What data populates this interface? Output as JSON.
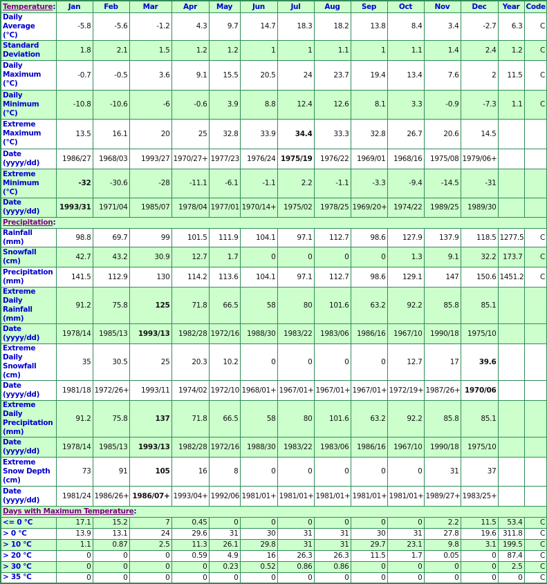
{
  "colors": {
    "border": "#2e8b57",
    "shade": "#ccffcc",
    "label": "#0000cc",
    "link": "#800080"
  },
  "columns": [
    "Jan",
    "Feb",
    "Mar",
    "Apr",
    "May",
    "Jun",
    "Jul",
    "Aug",
    "Sep",
    "Oct",
    "Nov",
    "Dec",
    "Year",
    "Code"
  ],
  "sections": [
    {
      "title": "Temperature",
      "rows": [
        {
          "label": "Daily Average\n(°C)",
          "shaded": false,
          "h": 29,
          "values": [
            "-5.8",
            "-5.6",
            "-1.2",
            "4.3",
            "9.7",
            "14.7",
            "18.3",
            "18.2",
            "13.8",
            "8.4",
            "3.4",
            "-2.7",
            "6.3",
            "C"
          ]
        },
        {
          "label": "Standard\nDeviation",
          "shaded": true,
          "h": 29,
          "values": [
            "1.8",
            "2.1",
            "1.5",
            "1.2",
            "1.2",
            "1",
            "1",
            "1.1",
            "1",
            "1.1",
            "1.4",
            "2.4",
            "1.2",
            "C"
          ]
        },
        {
          "label": "Daily\nMaximum\n(°C)",
          "shaded": false,
          "h": 43,
          "values": [
            "-0.7",
            "-0.5",
            "3.6",
            "9.1",
            "15.5",
            "20.5",
            "24",
            "23.7",
            "19.4",
            "13.4",
            "7.6",
            "2",
            "11.5",
            "C"
          ]
        },
        {
          "label": "Daily\nMinimum\n(°C)",
          "shaded": true,
          "h": 42,
          "values": [
            "-10.8",
            "-10.6",
            "-6",
            "-0.6",
            "3.9",
            "8.8",
            "12.4",
            "12.6",
            "8.1",
            "3.3",
            "-0.9",
            "-7.3",
            "1.1",
            "C"
          ]
        },
        {
          "label": "Extreme\nMaximum\n(°C)",
          "shaded": false,
          "h": 43,
          "bold_index": 6,
          "values": [
            "13.5",
            "16.1",
            "20",
            "25",
            "32.8",
            "33.9",
            "34.4",
            "33.3",
            "32.8",
            "26.7",
            "20.6",
            "14.5",
            "",
            ""
          ]
        },
        {
          "label": "Date\n(yyyy/dd)",
          "shaded": false,
          "h": 29,
          "bold_index": 6,
          "values": [
            "1986/27",
            "1968/03",
            "1993/27",
            "1970/27+",
            "1977/23",
            "1976/24",
            "1975/19",
            "1976/22",
            "1969/01",
            "1968/16",
            "1975/08",
            "1979/06+",
            "",
            ""
          ]
        },
        {
          "label": "Extreme\nMinimum\n(°C)",
          "shaded": true,
          "h": 42,
          "bold_index": 0,
          "values": [
            "-32",
            "-30.6",
            "-28",
            "-11.1",
            "-6.1",
            "-1.1",
            "2.2",
            "-1.1",
            "-3.3",
            "-9.4",
            "-14.5",
            "-31",
            "",
            ""
          ]
        },
        {
          "label": "Date\n(yyyy/dd)",
          "shaded": true,
          "h": 28,
          "bold_index": 0,
          "values": [
            "1993/31",
            "1971/04",
            "1985/07",
            "1978/04",
            "1977/01",
            "1970/14+",
            "1975/02",
            "1978/25",
            "1969/20+",
            "1974/22",
            "1989/25",
            "1989/30",
            "",
            ""
          ]
        }
      ]
    },
    {
      "title": "Precipitation",
      "rows": [
        {
          "label": "Rainfall (mm)",
          "shaded": false,
          "h": 17,
          "values": [
            "98.8",
            "69.7",
            "99",
            "101.5",
            "111.9",
            "104.1",
            "97.1",
            "112.7",
            "98.6",
            "127.9",
            "137.9",
            "118.5",
            "1277.5",
            "C"
          ]
        },
        {
          "label": "Snowfall\n(cm)",
          "shaded": true,
          "h": 29,
          "values": [
            "42.7",
            "43.2",
            "30.9",
            "12.7",
            "1.7",
            "0",
            "0",
            "0",
            "0",
            "1.3",
            "9.1",
            "32.2",
            "173.7",
            "C"
          ]
        },
        {
          "label": "Precipitation\n(mm)",
          "shaded": false,
          "h": 29,
          "values": [
            "141.5",
            "112.9",
            "130",
            "114.2",
            "113.6",
            "104.1",
            "97.1",
            "112.7",
            "98.6",
            "129.1",
            "147",
            "150.6",
            "1451.2",
            "C"
          ]
        },
        {
          "label": "Extreme Daily\nRainfall (mm)",
          "shaded": true,
          "h": 30,
          "bold_index": 2,
          "values": [
            "91.2",
            "75.8",
            "125",
            "71.8",
            "66.5",
            "58",
            "80",
            "101.6",
            "63.2",
            "92.2",
            "85.8",
            "85.1",
            "",
            ""
          ]
        },
        {
          "label": "Date\n(yyyy/dd)",
          "shaded": true,
          "h": 29,
          "bold_index": 2,
          "values": [
            "1978/14",
            "1985/13",
            "1993/13",
            "1982/28",
            "1972/16",
            "1988/30",
            "1983/22",
            "1983/06",
            "1986/16",
            "1967/10",
            "1990/18",
            "1975/10",
            "",
            ""
          ]
        },
        {
          "label": "Extreme Daily\nSnowfall\n(cm)",
          "shaded": false,
          "h": 42,
          "bold_index": 11,
          "values": [
            "35",
            "30.5",
            "25",
            "20.3",
            "10.2",
            "0",
            "0",
            "0",
            "0",
            "12.7",
            "17",
            "39.6",
            "",
            ""
          ]
        },
        {
          "label": "Date\n(yyyy/dd)",
          "shaded": false,
          "h": 29,
          "bold_index": 11,
          "values": [
            "1981/18",
            "1972/26+",
            "1993/11",
            "1974/02",
            "1972/10",
            "1968/01+",
            "1967/01+",
            "1967/01+",
            "1967/01+",
            "1972/19+",
            "1987/26+",
            "1970/06",
            "",
            ""
          ]
        },
        {
          "label": "Extreme Daily\nPrecipitation\n(mm)",
          "shaded": true,
          "h": 42,
          "bold_index": 2,
          "values": [
            "91.2",
            "75.8",
            "137",
            "71.8",
            "66.5",
            "58",
            "80",
            "101.6",
            "63.2",
            "92.2",
            "85.8",
            "85.1",
            "",
            ""
          ]
        },
        {
          "label": "Date\n(yyyy/dd)",
          "shaded": true,
          "h": 29,
          "bold_index": 2,
          "values": [
            "1978/14",
            "1985/13",
            "1993/13",
            "1982/28",
            "1972/16",
            "1988/30",
            "1983/22",
            "1983/06",
            "1986/16",
            "1967/10",
            "1990/18",
            "1975/10",
            "",
            ""
          ]
        },
        {
          "label": "Extreme\nSnow Depth\n(cm)",
          "shaded": false,
          "h": 42,
          "bold_index": 2,
          "values": [
            "73",
            "91",
            "105",
            "16",
            "8",
            "0",
            "0",
            "0",
            "0",
            "0",
            "31",
            "37",
            "",
            ""
          ]
        },
        {
          "label": "Date\n(yyyy/dd)",
          "shaded": false,
          "h": 29,
          "bold_index": 2,
          "values": [
            "1981/24",
            "1986/26+",
            "1986/07+",
            "1993/04+",
            "1992/06",
            "1981/01+",
            "1981/01+",
            "1981/01+",
            "1981/01+",
            "1981/01+",
            "1989/27+",
            "1983/25+",
            "",
            ""
          ]
        }
      ]
    },
    {
      "title": "Days with Maximum Temperature",
      "rows": [
        {
          "label": "<= 0 °C",
          "shaded": true,
          "h": 16,
          "values": [
            "17.1",
            "15.2",
            "7",
            "0.45",
            "0",
            "0",
            "0",
            "0",
            "0",
            "0",
            "2.2",
            "11.5",
            "53.4",
            "C"
          ]
        },
        {
          "label": "> 0 °C",
          "shaded": false,
          "h": 16,
          "values": [
            "13.9",
            "13.1",
            "24",
            "29.6",
            "31",
            "30",
            "31",
            "31",
            "30",
            "31",
            "27.8",
            "19.6",
            "311.8",
            "C"
          ]
        },
        {
          "label": "> 10 °C",
          "shaded": true,
          "h": 16,
          "values": [
            "1.1",
            "0.87",
            "2.5",
            "11.3",
            "26.1",
            "29.8",
            "31",
            "31",
            "29.7",
            "23.1",
            "9.8",
            "3.1",
            "199.5",
            "C"
          ]
        },
        {
          "label": "> 20 °C",
          "shaded": false,
          "h": 16,
          "values": [
            "0",
            "0",
            "0",
            "0.59",
            "4.9",
            "16",
            "26.3",
            "26.3",
            "11.5",
            "1.7",
            "0.05",
            "0",
            "87.4",
            "C"
          ]
        },
        {
          "label": "> 30 °C",
          "shaded": true,
          "h": 16,
          "values": [
            "0",
            "0",
            "0",
            "0",
            "0.23",
            "0.52",
            "0.86",
            "0.86",
            "0",
            "0",
            "0",
            "0",
            "2.5",
            "C"
          ]
        },
        {
          "label": "> 35 °C",
          "shaded": false,
          "h": 16,
          "values": [
            "0",
            "0",
            "0",
            "0",
            "0",
            "0",
            "0",
            "0",
            "0",
            "0",
            "0",
            "0",
            "0",
            "C"
          ]
        }
      ]
    }
  ]
}
